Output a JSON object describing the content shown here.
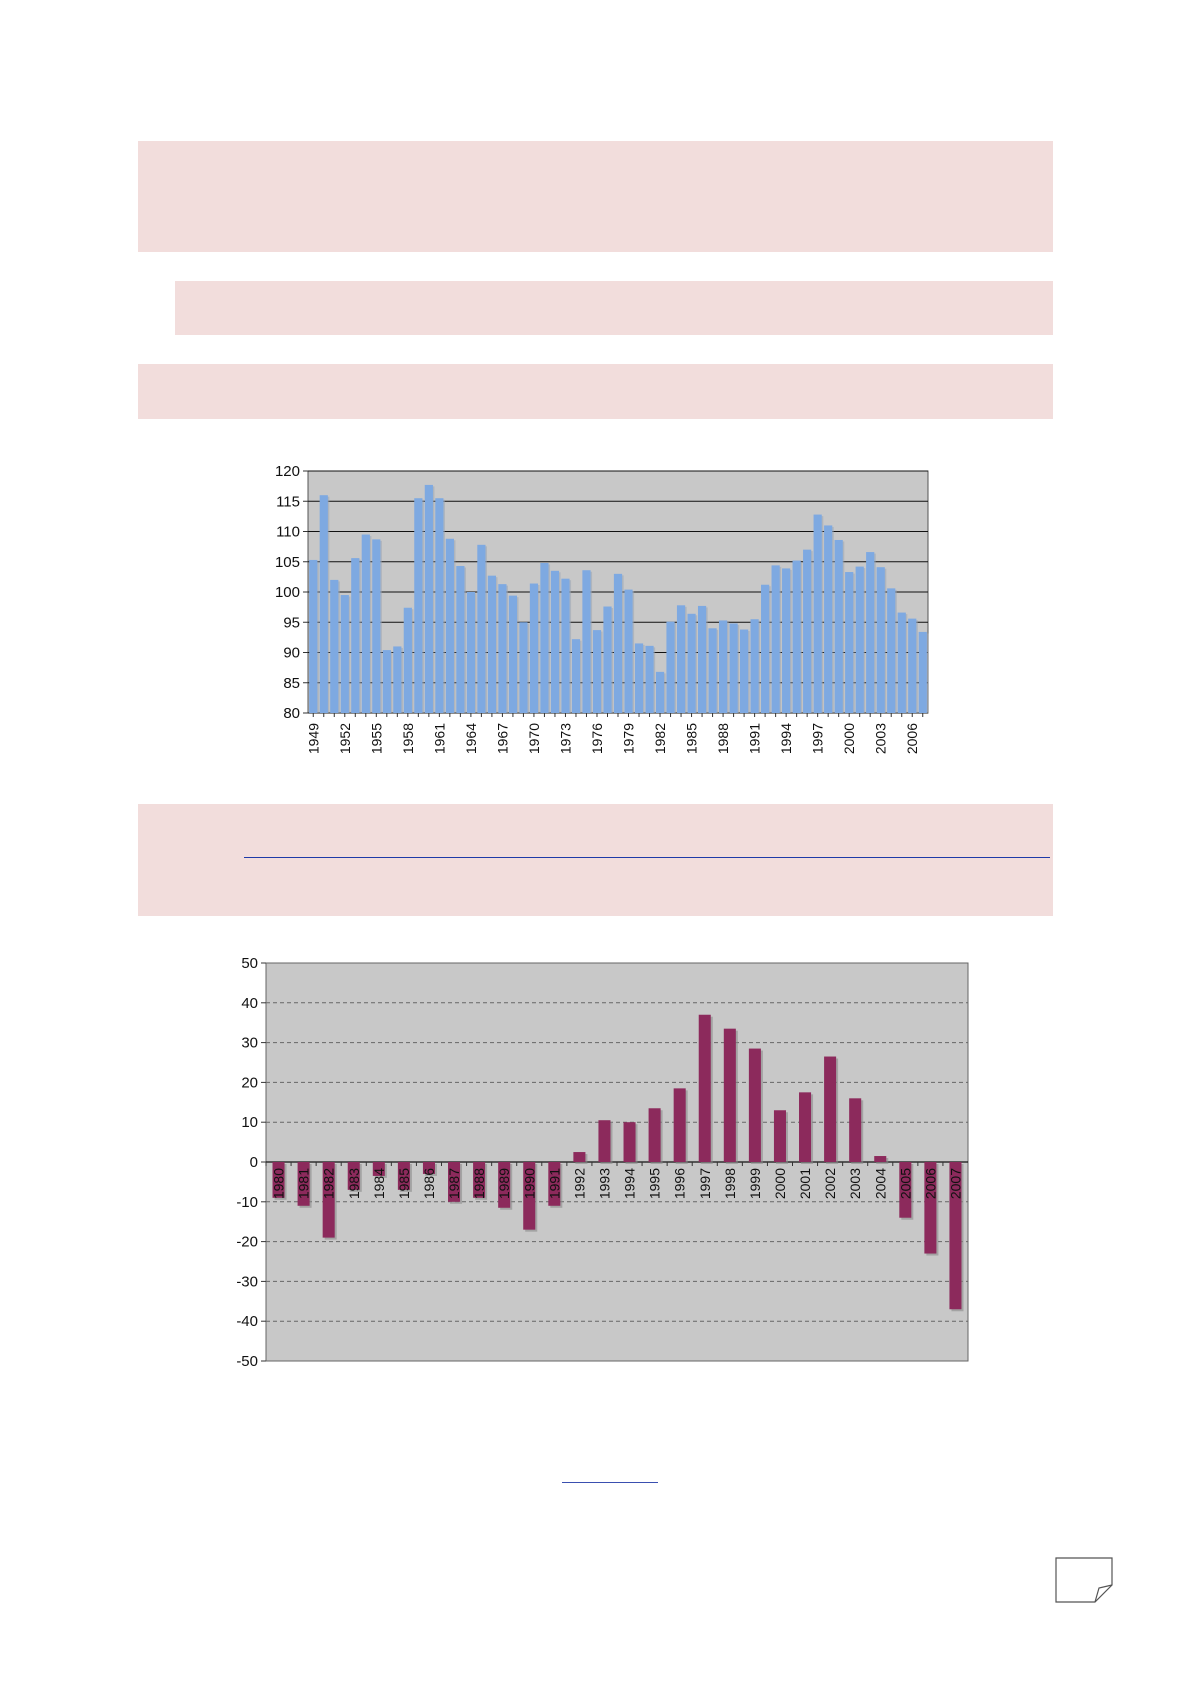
{
  "chart_data": [
    {
      "type": "bar",
      "title": "",
      "xlabel": "",
      "ylabel": "",
      "ylim": [
        80,
        120
      ],
      "yticks": [
        80,
        85,
        90,
        95,
        100,
        105,
        110,
        115,
        120
      ],
      "x": [
        1949,
        1950,
        1951,
        1952,
        1953,
        1954,
        1955,
        1956,
        1957,
        1958,
        1959,
        1960,
        1961,
        1962,
        1963,
        1964,
        1965,
        1966,
        1967,
        1968,
        1969,
        1970,
        1971,
        1972,
        1973,
        1974,
        1975,
        1976,
        1977,
        1978,
        1979,
        1980,
        1981,
        1982,
        1983,
        1984,
        1985,
        1986,
        1987,
        1988,
        1989,
        1990,
        1991,
        1992,
        1993,
        1994,
        1995,
        1996,
        1997,
        1998,
        1999,
        2000,
        2001,
        2002,
        2003,
        2004,
        2005,
        2006,
        2007
      ],
      "x_tick_labels": [
        "1949",
        "1952",
        "1955",
        "1958",
        "1961",
        "1964",
        "1967",
        "1970",
        "1973",
        "1976",
        "1979",
        "1982",
        "1985",
        "1988",
        "1991",
        "1994",
        "1997",
        "2000",
        "2003",
        "2006"
      ],
      "values": [
        105.3,
        116,
        102,
        99.5,
        105.6,
        109.5,
        108.7,
        90.4,
        91,
        97.4,
        115.5,
        117.7,
        115.5,
        108.8,
        104.3,
        100,
        107.8,
        102.7,
        101.3,
        99.4,
        95,
        101.4,
        104.8,
        103.5,
        102.2,
        92.2,
        103.6,
        93.7,
        97.6,
        103,
        100.4,
        91.5,
        91.1,
        86.8,
        95.1,
        97.8,
        96.4,
        97.7,
        94,
        95.3,
        94.8,
        93.8,
        95.5,
        101.2,
        104.4,
        103.9,
        105.2,
        107,
        112.8,
        111,
        108.6,
        103.3,
        104.2,
        106.6,
        104.1,
        100.6,
        96.6,
        95.6,
        93.4
      ],
      "bar_color": "#7ea9e1",
      "plot_background": "#c8c8c8",
      "grid": true
    },
    {
      "type": "bar",
      "title": "",
      "xlabel": "",
      "ylabel": "",
      "ylim": [
        -50,
        50
      ],
      "yticks": [
        -50,
        -40,
        -30,
        -20,
        -10,
        0,
        10,
        20,
        30,
        40,
        50
      ],
      "categories": [
        "1980",
        "1981",
        "1982",
        "1983",
        "1984",
        "1985",
        "1986",
        "1987",
        "1988",
        "1989",
        "1990",
        "1991",
        "1992",
        "1993",
        "1994",
        "1995",
        "1996",
        "1997",
        "1998",
        "1999",
        "2000",
        "2001",
        "2002",
        "2003",
        "2004",
        "2005",
        "2006",
        "2007"
      ],
      "values": [
        -9,
        -11,
        -19,
        -7,
        -3.5,
        -7,
        -3,
        -10,
        -9,
        -11.5,
        -17,
        -11,
        2.5,
        10.5,
        10,
        13.5,
        18.5,
        37,
        33.5,
        28.5,
        13,
        17.5,
        26.5,
        16,
        1.5,
        -14,
        -23,
        -37
      ],
      "bar_color": "#8c2a5c",
      "plot_background": "#c8c8c8",
      "grid": true
    }
  ]
}
